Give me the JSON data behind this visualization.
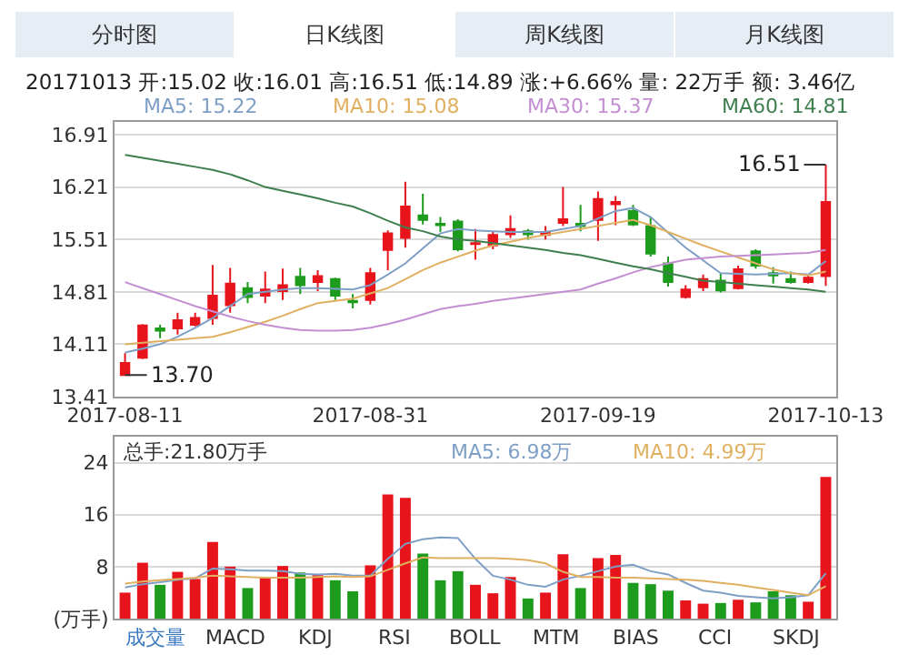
{
  "chart_data": [
    {
      "type": "candlestick",
      "title": "20171013 开:15.02 收:16.01 高:16.51 低:14.89 涨:+6.66% 量: 22万手 额: 3.46亿",
      "categories": [
        "2017-08-11",
        null,
        null,
        null,
        null,
        null,
        null,
        null,
        null,
        null,
        null,
        null,
        null,
        null,
        "2017-08-31",
        null,
        null,
        null,
        null,
        null,
        null,
        null,
        null,
        null,
        null,
        null,
        null,
        "2017-09-19",
        null,
        null,
        null,
        null,
        null,
        null,
        null,
        null,
        null,
        null,
        null,
        null,
        "2017-10-13"
      ],
      "ohlc": [
        [
          13.7,
          13.99,
          13.7,
          13.86
        ],
        [
          13.93,
          14.38,
          13.91,
          14.36
        ],
        [
          14.32,
          14.37,
          14.19,
          14.29
        ],
        [
          14.32,
          14.53,
          14.24,
          14.43
        ],
        [
          14.37,
          14.53,
          14.35,
          14.46
        ],
        [
          14.46,
          15.17,
          14.37,
          14.76
        ],
        [
          14.63,
          15.13,
          14.53,
          14.92
        ],
        [
          14.86,
          14.94,
          14.66,
          14.74
        ],
        [
          14.76,
          15.08,
          14.66,
          14.84
        ],
        [
          14.82,
          15.12,
          14.7,
          14.9
        ],
        [
          15.01,
          15.13,
          14.78,
          14.9
        ],
        [
          14.94,
          15.1,
          14.82,
          15.02
        ],
        [
          14.98,
          15.0,
          14.7,
          14.76
        ],
        [
          14.69,
          14.78,
          14.59,
          14.67
        ],
        [
          14.7,
          15.13,
          14.64,
          15.06
        ],
        [
          15.37,
          15.63,
          15.1,
          15.59
        ],
        [
          15.53,
          16.28,
          15.4,
          15.95
        ],
        [
          15.83,
          16.12,
          15.71,
          15.77
        ],
        [
          15.72,
          15.81,
          15.61,
          15.7
        ],
        [
          15.75,
          15.78,
          15.35,
          15.38
        ],
        [
          15.45,
          15.65,
          15.24,
          15.46
        ],
        [
          15.43,
          15.61,
          15.38,
          15.57
        ],
        [
          15.58,
          15.83,
          15.53,
          15.65
        ],
        [
          15.62,
          15.65,
          15.51,
          15.58
        ],
        [
          15.57,
          15.69,
          15.51,
          15.6
        ],
        [
          15.73,
          16.21,
          15.69,
          15.78
        ],
        [
          15.72,
          15.97,
          15.62,
          15.69
        ],
        [
          15.77,
          16.15,
          15.49,
          16.05
        ],
        [
          15.98,
          16.09,
          15.7,
          16.01
        ],
        [
          15.89,
          15.97,
          15.69,
          15.71
        ],
        [
          15.69,
          15.81,
          15.28,
          15.32
        ],
        [
          15.19,
          15.28,
          14.88,
          14.94
        ],
        [
          14.74,
          14.9,
          14.72,
          14.84
        ],
        [
          14.87,
          15.04,
          14.82,
          14.98
        ],
        [
          14.96,
          15.06,
          14.8,
          14.83
        ],
        [
          14.86,
          15.16,
          14.84,
          15.11
        ],
        [
          15.35,
          15.38,
          15.12,
          15.16
        ],
        [
          15.06,
          15.14,
          14.92,
          15.03
        ],
        [
          14.98,
          15.08,
          14.92,
          14.94
        ],
        [
          14.94,
          15.03,
          14.92,
          15.0
        ],
        [
          15.02,
          16.51,
          14.89,
          16.01
        ]
      ],
      "colors": [
        "#e8141b",
        "#e8141b",
        "#1c9b1c",
        "#e8141b",
        "#e8141b",
        "#e8141b",
        "#e8141b",
        "#1c9b1c",
        "#e8141b",
        "#e8141b",
        "#1c9b1c",
        "#e8141b",
        "#1c9b1c",
        "#1c9b1c",
        "#e8141b",
        "#e8141b",
        "#e8141b",
        "#1c9b1c",
        "#1c9b1c",
        "#1c9b1c",
        "#e8141b",
        "#e8141b",
        "#e8141b",
        "#1c9b1c",
        "#e8141b",
        "#e8141b",
        "#1c9b1c",
        "#e8141b",
        "#e8141b",
        "#1c9b1c",
        "#1c9b1c",
        "#1c9b1c",
        "#e8141b",
        "#e8141b",
        "#1c9b1c",
        "#e8141b",
        "#1c9b1c",
        "#1c9b1c",
        "#1c9b1c",
        "#e8141b",
        "#e8141b"
      ],
      "series": [
        {
          "type": "line",
          "name": "MA5: 15.22",
          "color": "#7e9fc6",
          "values": [
            14.0,
            14.05,
            14.11,
            14.21,
            14.33,
            14.46,
            14.62,
            14.78,
            14.81,
            14.84,
            14.86,
            14.86,
            14.85,
            14.84,
            14.9,
            15.04,
            15.19,
            15.39,
            15.59,
            15.65,
            15.63,
            15.62,
            15.61,
            15.61,
            15.61,
            15.65,
            15.69,
            15.79,
            15.89,
            15.93,
            15.81,
            15.6,
            15.4,
            15.23,
            15.06,
            15.05,
            15.04,
            15.05,
            15.06,
            15.04,
            15.22
          ]
        },
        {
          "type": "line",
          "name": "MA10: 15.08",
          "color": "#e0b060",
          "values": [
            14.11,
            14.13,
            14.15,
            14.17,
            14.19,
            14.21,
            14.27,
            14.34,
            14.41,
            14.49,
            14.58,
            14.66,
            14.69,
            14.72,
            14.79,
            14.86,
            14.98,
            15.1,
            15.2,
            15.28,
            15.36,
            15.43,
            15.48,
            15.53,
            15.57,
            15.61,
            15.65,
            15.69,
            15.73,
            15.77,
            15.7,
            15.61,
            15.52,
            15.43,
            15.35,
            15.27,
            15.19,
            15.11,
            15.06,
            15.03,
            15.08
          ]
        },
        {
          "type": "line",
          "name": "MA30: 15.37",
          "color": "#c48fd2",
          "values": [
            14.94,
            14.86,
            14.78,
            14.7,
            14.62,
            14.55,
            14.48,
            14.42,
            14.37,
            14.33,
            14.3,
            14.29,
            14.29,
            14.3,
            14.33,
            14.38,
            14.44,
            14.51,
            14.58,
            14.62,
            14.65,
            14.69,
            14.72,
            14.75,
            14.78,
            14.81,
            14.84,
            14.92,
            14.99,
            15.07,
            15.14,
            15.19,
            15.24,
            15.26,
            15.28,
            15.29,
            15.3,
            15.31,
            15.32,
            15.33,
            15.37
          ]
        },
        {
          "type": "line",
          "name": "MA60: 14.81",
          "color": "#3f7f4f",
          "values": [
            16.64,
            16.6,
            16.56,
            16.52,
            16.48,
            16.44,
            16.38,
            16.3,
            16.21,
            16.16,
            16.11,
            16.06,
            16.0,
            15.95,
            15.86,
            15.76,
            15.67,
            15.62,
            15.55,
            15.51,
            15.49,
            15.46,
            15.43,
            15.4,
            15.37,
            15.33,
            15.3,
            15.25,
            15.2,
            15.15,
            15.11,
            15.06,
            15.01,
            14.96,
            14.94,
            14.92,
            14.9,
            14.88,
            14.86,
            14.84,
            14.81
          ]
        }
      ],
      "ylim": [
        13.41,
        17.08
      ],
      "yticks": [
        13.41,
        14.11,
        14.81,
        15.51,
        16.21,
        16.91
      ],
      "grid": "y",
      "annotations": [
        "分时图",
        "日K线图",
        "周K线图",
        "月K线图",
        {
          "text": "13.70",
          "x": "2017-08-11",
          "y": 13.7
        },
        {
          "text": "16.51",
          "x": "2017-10-13",
          "y": 16.51
        }
      ]
    },
    {
      "type": "bar",
      "tick_labels": "y",
      "categories": [
        "2017-08-11",
        null,
        null,
        null,
        null,
        null,
        null,
        null,
        null,
        null,
        null,
        null,
        null,
        null,
        "2017-08-31",
        null,
        null,
        null,
        null,
        null,
        null,
        null,
        null,
        null,
        null,
        null,
        null,
        "2017-09-19",
        null,
        null,
        null,
        null,
        null,
        null,
        null,
        null,
        null,
        null,
        null,
        null,
        "2017-10-13"
      ],
      "series": [
        {
          "values": [
            4.0,
            8.6,
            5.2,
            7.2,
            6.1,
            11.8,
            8.0,
            4.7,
            6.4,
            8.1,
            7.1,
            6.7,
            5.9,
            4.2,
            8.2,
            19.1,
            18.6,
            10.0,
            5.9,
            7.3,
            5.2,
            3.9,
            6.4,
            3.1,
            4.0,
            9.9,
            4.7,
            9.3,
            9.8,
            5.5,
            5.3,
            4.3,
            2.8,
            2.3,
            2.4,
            2.9,
            2.5,
            4.2,
            3.6,
            2.6,
            21.8
          ],
          "colors": [
            "#e8141b",
            "#e8141b",
            "#1c9b1c",
            "#e8141b",
            "#e8141b",
            "#e8141b",
            "#e8141b",
            "#1c9b1c",
            "#e8141b",
            "#e8141b",
            "#1c9b1c",
            "#e8141b",
            "#1c9b1c",
            "#1c9b1c",
            "#e8141b",
            "#e8141b",
            "#e8141b",
            "#1c9b1c",
            "#1c9b1c",
            "#1c9b1c",
            "#e8141b",
            "#e8141b",
            "#e8141b",
            "#1c9b1c",
            "#e8141b",
            "#e8141b",
            "#1c9b1c",
            "#e8141b",
            "#e8141b",
            "#1c9b1c",
            "#1c9b1c",
            "#1c9b1c",
            "#e8141b",
            "#e8141b",
            "#1c9b1c",
            "#e8141b",
            "#1c9b1c",
            "#1c9b1c",
            "#1c9b1c",
            "#e8141b",
            "#e8141b"
          ]
        },
        {
          "type": "line",
          "name": "MA5: 6.98万",
          "color": "#7e9fc6",
          "values": [
            4.8,
            5.3,
            5.6,
            6.0,
            6.2,
            7.7,
            7.6,
            7.4,
            7.4,
            7.3,
            6.9,
            6.8,
            6.9,
            6.6,
            6.6,
            9.2,
            11.5,
            12.2,
            12.5,
            12.4,
            9.2,
            6.6,
            6.0,
            5.2,
            4.9,
            6.0,
            6.6,
            7.3,
            8.0,
            8.3,
            7.3,
            6.8,
            5.5,
            4.3,
            4.0,
            3.5,
            3.3,
            3.1,
            3.3,
            3.6,
            6.98
          ]
        },
        {
          "type": "line",
          "name": "MA10: 4.99万",
          "color": "#e0b060",
          "values": [
            5.4,
            5.7,
            5.9,
            6.1,
            6.3,
            6.6,
            6.5,
            6.4,
            6.3,
            6.3,
            6.3,
            6.4,
            6.5,
            6.4,
            6.5,
            7.5,
            8.5,
            9.4,
            9.3,
            9.3,
            9.3,
            9.3,
            9.2,
            9.0,
            8.5,
            7.2,
            6.4,
            6.4,
            6.3,
            6.3,
            6.2,
            6.1,
            6.0,
            5.8,
            5.5,
            5.2,
            4.8,
            4.4,
            4.0,
            3.6,
            4.99
          ]
        }
      ],
      "ylim": [
        0,
        28
      ],
      "yticks": [
        {
          "value": 0,
          "label": "(万手)"
        },
        8,
        16,
        24
      ],
      "grid": "y",
      "annotations": [
        "总手:21.80万手",
        "成交量",
        "MACD",
        "KDJ",
        "RSI",
        "BOLL",
        "MTM",
        "BIAS",
        "CCI",
        "SKDJ"
      ]
    }
  ]
}
